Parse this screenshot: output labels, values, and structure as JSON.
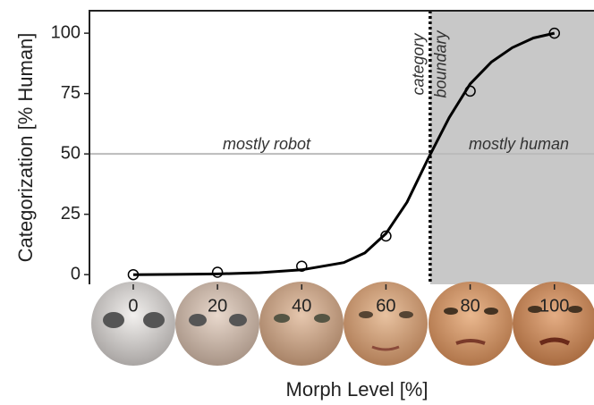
{
  "chart_data": {
    "type": "line",
    "ylabel": "Categorization [% Human]",
    "xlabel": "Morph Level [%]",
    "xlim": [
      -10.4,
      109.4
    ],
    "ylim": [
      -4,
      109.3
    ],
    "xticks": [
      0,
      20,
      40,
      60,
      80,
      100
    ],
    "yticks": [
      0,
      25,
      50,
      75,
      100
    ],
    "reference_line": 50,
    "boundary": 70.5,
    "annotations": [
      "mostly robot",
      "mostly human",
      "category",
      "boundary"
    ],
    "series": [
      {
        "type": "scatter",
        "color": "#000",
        "x": [
          0,
          20,
          40,
          60,
          80,
          100
        ],
        "values": [
          0,
          1,
          3.5,
          16,
          76,
          100
        ]
      },
      {
        "type": "line",
        "color": "#000",
        "x": [
          0,
          10,
          20,
          30,
          40,
          50,
          55,
          60,
          65,
          70,
          75,
          80,
          85,
          90,
          95,
          100
        ],
        "values": [
          0,
          0.1,
          0.3,
          0.8,
          2,
          5,
          9,
          17,
          30,
          48,
          65,
          79,
          88,
          94,
          98,
          100
        ]
      }
    ]
  }
}
